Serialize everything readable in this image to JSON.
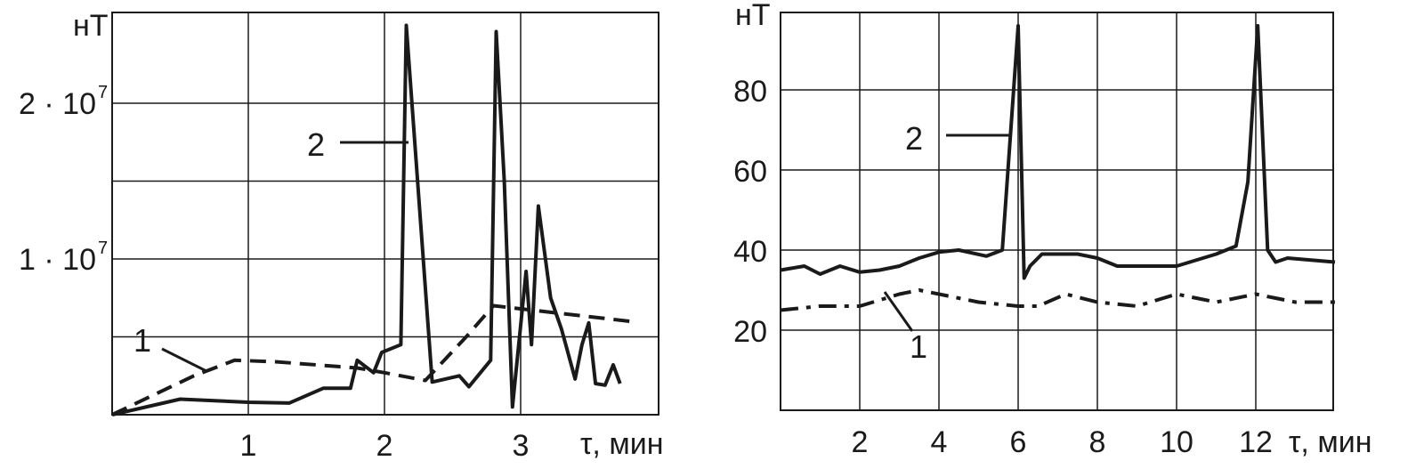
{
  "chart_data": [
    {
      "type": "line",
      "ylabel": "нТ",
      "xlabel": "τ, мин",
      "xlim": [
        0,
        4
      ],
      "ylim": [
        0,
        25000000.0
      ],
      "x_ticks": [
        "1",
        "2",
        "3"
      ],
      "y_ticks": [
        {
          "base": "2 · 10",
          "exp": "7",
          "value": 20000000.0
        },
        {
          "base": "1 · 10",
          "exp": "7",
          "value": 10000000.0
        }
      ],
      "grid": true,
      "series": [
        {
          "name": "1",
          "style": "dashed",
          "x": [
            0,
            0.6,
            0.9,
            1.2,
            1.5,
            1.8,
            2.0,
            2.3,
            2.6,
            2.8,
            3.0,
            3.3,
            3.6,
            3.8
          ],
          "y": [
            0,
            2500000.0,
            3500000.0,
            3400000.0,
            3200000.0,
            3000000.0,
            2700000.0,
            2200000.0,
            5000000.0,
            7000000.0,
            6800000.0,
            6500000.0,
            6200000.0,
            6000000.0
          ]
        },
        {
          "name": "2",
          "style": "solid",
          "x": [
            0,
            0.5,
            1.0,
            1.3,
            1.55,
            1.75,
            1.8,
            1.92,
            1.98,
            2.12,
            2.16,
            2.35,
            2.55,
            2.62,
            2.78,
            2.82,
            2.88,
            2.94,
            3.04,
            3.08,
            3.13,
            3.22,
            3.3,
            3.4,
            3.45,
            3.5,
            3.55,
            3.62,
            3.68,
            3.73
          ],
          "y": [
            0,
            1000000.0,
            800000.0,
            750000.0,
            1700000.0,
            1700000.0,
            3500000.0,
            2700000.0,
            4000000.0,
            4500000.0,
            25000000.0,
            2100000.0,
            2500000.0,
            1800000.0,
            3500000.0,
            24600000.0,
            15000000.0,
            500000.0,
            9200000.0,
            4500000.0,
            13400000.0,
            7500000.0,
            5500000.0,
            2300000.0,
            4500000.0,
            5900000.0,
            2000000.0,
            1900000.0,
            3200000.0,
            2000000.0
          ]
        }
      ],
      "annotations": [
        "1",
        "2"
      ]
    },
    {
      "type": "line",
      "ylabel": "нТ",
      "xlabel": "τ, мин",
      "xlim": [
        0,
        14
      ],
      "ylim": [
        0,
        100
      ],
      "x_ticks": [
        "2",
        "4",
        "6",
        "8",
        "10",
        "12"
      ],
      "y_ticks": [
        "20",
        "40",
        "60",
        "80"
      ],
      "grid": true,
      "series": [
        {
          "name": "1",
          "style": "dash-dot",
          "x": [
            0,
            1,
            2,
            3,
            3.5,
            4.5,
            5,
            6,
            6.5,
            7.2,
            8,
            9,
            10,
            10.5,
            11,
            12,
            12.5,
            13,
            14
          ],
          "y": [
            25,
            26,
            26,
            29,
            30,
            28,
            27,
            26,
            26,
            29,
            27,
            26,
            29,
            28,
            27,
            29,
            28,
            27,
            27
          ]
        },
        {
          "name": "2",
          "style": "solid",
          "x": [
            0,
            0.6,
            1,
            1.5,
            2,
            2.5,
            3,
            3.5,
            4,
            4.5,
            5.2,
            5.6,
            6.0,
            6.15,
            6.3,
            6.6,
            7,
            7.5,
            8,
            8.5,
            9,
            9.5,
            10,
            11,
            11.5,
            11.8,
            12.05,
            12.3,
            12.5,
            12.8,
            14
          ],
          "y": [
            35,
            36,
            34,
            36,
            34.5,
            35,
            36,
            38,
            39.5,
            40,
            38.5,
            40,
            96,
            33,
            36,
            39,
            39,
            39,
            38,
            36,
            36,
            36,
            36,
            39,
            41,
            57,
            96,
            40,
            37,
            38,
            37
          ]
        }
      ],
      "annotations": [
        "1",
        "2"
      ]
    }
  ]
}
